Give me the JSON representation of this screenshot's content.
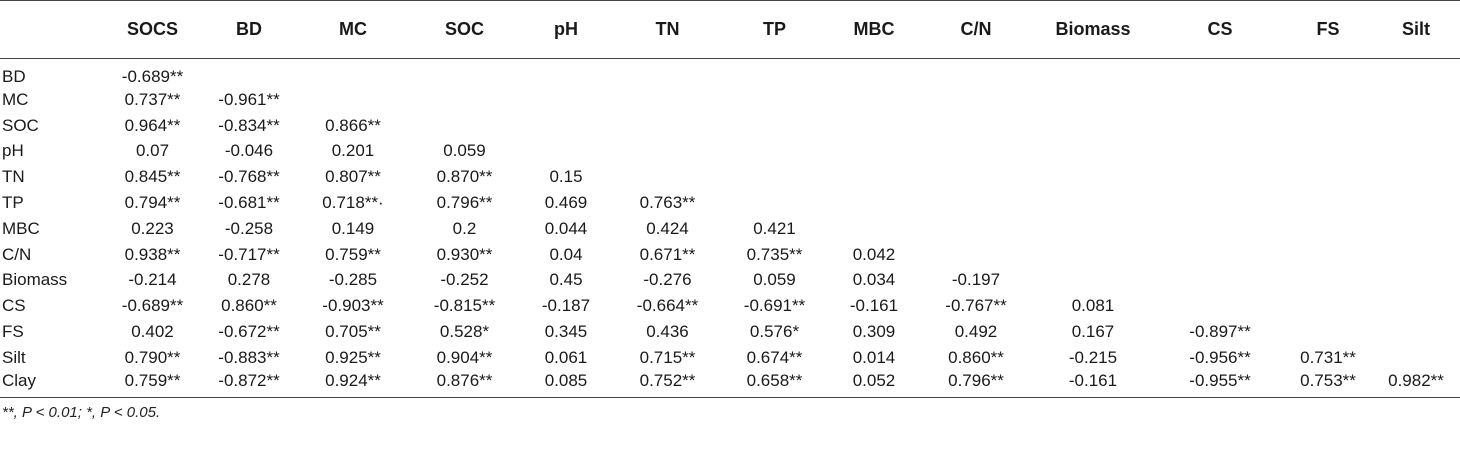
{
  "table": {
    "columns": [
      "",
      "SOCS",
      "BD",
      "MC",
      "SOC",
      "pH",
      "TN",
      "TP",
      "MBC",
      "C/N",
      "Biomass",
      "CS",
      "FS",
      "Silt"
    ],
    "rows": [
      {
        "label": "BD",
        "cells": [
          "-0.689**",
          "",
          "",
          "",
          "",
          "",
          "",
          "",
          "",
          "",
          "",
          "",
          ""
        ]
      },
      {
        "label": "MC",
        "cells": [
          "0.737**",
          "-0.961**",
          "",
          "",
          "",
          "",
          "",
          "",
          "",
          "",
          "",
          "",
          ""
        ]
      },
      {
        "label": "SOC",
        "cells": [
          "0.964**",
          "-0.834**",
          "0.866**",
          "",
          "",
          "",
          "",
          "",
          "",
          "",
          "",
          "",
          ""
        ]
      },
      {
        "label": "pH",
        "cells": [
          "0.07",
          "-0.046",
          "0.201",
          "0.059",
          "",
          "",
          "",
          "",
          "",
          "",
          "",
          "",
          ""
        ]
      },
      {
        "label": "TN",
        "cells": [
          "0.845**",
          "-0.768**",
          "0.807**",
          "0.870**",
          "0.15",
          "",
          "",
          "",
          "",
          "",
          "",
          "",
          ""
        ]
      },
      {
        "label": "TP",
        "cells": [
          "0.794**",
          "-0.681**",
          "0.718**·",
          "0.796**",
          "0.469",
          "0.763**",
          "",
          "",
          "",
          "",
          "",
          "",
          ""
        ]
      },
      {
        "label": "MBC",
        "cells": [
          "0.223",
          "-0.258",
          "0.149",
          "0.2",
          "0.044",
          "0.424",
          "0.421",
          "",
          "",
          "",
          "",
          "",
          ""
        ]
      },
      {
        "label": "C/N",
        "cells": [
          "0.938**",
          "-0.717**",
          "0.759**",
          "0.930**",
          "0.04",
          "0.671**",
          "0.735**",
          "0.042",
          "",
          "",
          "",
          "",
          ""
        ]
      },
      {
        "label": "Biomass",
        "cells": [
          "-0.214",
          "0.278",
          "-0.285",
          "-0.252",
          "0.45",
          "-0.276",
          "0.059",
          "0.034",
          "-0.197",
          "",
          "",
          "",
          ""
        ]
      },
      {
        "label": "CS",
        "cells": [
          "-0.689**",
          "0.860**",
          "-0.903**",
          "-0.815**",
          "-0.187",
          "-0.664**",
          "-0.691**",
          "-0.161",
          "-0.767**",
          "0.081",
          "",
          "",
          ""
        ]
      },
      {
        "label": "FS",
        "cells": [
          "0.402",
          "-0.672**",
          "0.705**",
          "0.528*",
          "0.345",
          "0.436",
          "0.576*",
          "0.309",
          "0.492",
          "0.167",
          "-0.897**",
          "",
          ""
        ]
      },
      {
        "label": "Silt",
        "cells": [
          "0.790**",
          "-0.883**",
          "0.925**",
          "0.904**",
          "0.061",
          "0.715**",
          "0.674**",
          "0.014",
          "0.860**",
          "-0.215",
          "-0.956**",
          "0.731**",
          ""
        ]
      },
      {
        "label": "Clay",
        "cells": [
          "0.759**",
          "-0.872**",
          "0.924**",
          "0.876**",
          "0.085",
          "0.752**",
          "0.658**",
          "0.052",
          "0.796**",
          "-0.161",
          "-0.955**",
          "0.753**",
          "0.982**"
        ]
      }
    ],
    "footnote": "**, P < 0.01; *, P < 0.05."
  }
}
